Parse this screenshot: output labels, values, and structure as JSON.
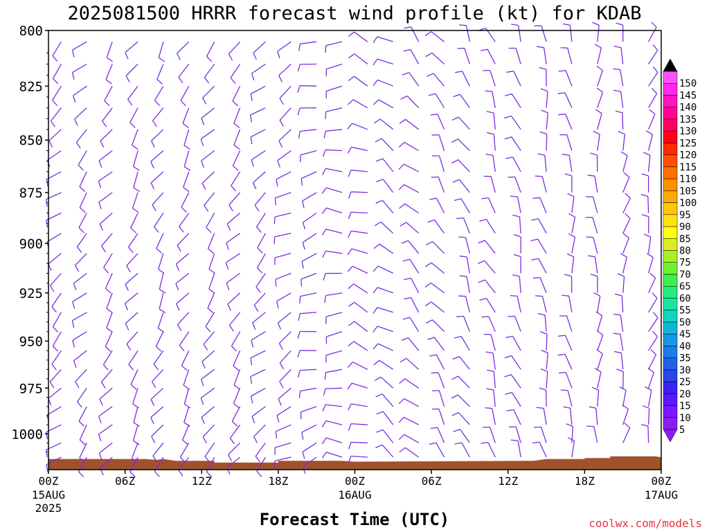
{
  "chart_data": {
    "type": "wind_profile",
    "title": "2025081500 HRRR forecast wind profile (kt) for KDAB",
    "xlabel": "Forecast Time (UTC)",
    "credit": "coolwx.com/models",
    "credit_color": "#e8323c",
    "y_axis": {
      "type": "log",
      "inverted": true,
      "range": [
        1020,
        800
      ],
      "ticks": [
        800,
        825,
        850,
        875,
        900,
        925,
        950,
        975,
        1000
      ]
    },
    "x_axis": {
      "range_hours": [
        0,
        48
      ],
      "ticks": [
        {
          "hour": 0,
          "label": "00Z",
          "date": "15AUG",
          "year": "2025"
        },
        {
          "hour": 6,
          "label": "06Z"
        },
        {
          "hour": 12,
          "label": "12Z"
        },
        {
          "hour": 18,
          "label": "18Z"
        },
        {
          "hour": 24,
          "label": "00Z",
          "date": "16AUG"
        },
        {
          "hour": 30,
          "label": "06Z"
        },
        {
          "hour": 36,
          "label": "12Z"
        },
        {
          "hour": 42,
          "label": "18Z"
        },
        {
          "hour": 48,
          "label": "00Z",
          "date": "17AUG"
        }
      ]
    },
    "barb_color": "#7b2be0",
    "surface_color": "#a0522d",
    "surface_pressure": [
      {
        "hour": 0,
        "p": 1014
      },
      {
        "hour": 7.5,
        "p": 1014
      },
      {
        "hour": 8.5,
        "p": 1014.5
      },
      {
        "hour": 9,
        "p": 1014
      },
      {
        "hour": 10,
        "p": 1015
      },
      {
        "hour": 13,
        "p": 1015
      },
      {
        "hour": 13,
        "p": 1016
      },
      {
        "hour": 18,
        "p": 1016
      },
      {
        "hour": 18,
        "p": 1015
      },
      {
        "hour": 23,
        "p": 1015
      },
      {
        "hour": 24,
        "p": 1015.5
      },
      {
        "hour": 38,
        "p": 1015
      },
      {
        "hour": 39,
        "p": 1014
      },
      {
        "hour": 42,
        "p": 1014
      },
      {
        "hour": 42,
        "p": 1013.5
      },
      {
        "hour": 44,
        "p": 1013.5
      },
      {
        "hour": 44,
        "p": 1012.5
      },
      {
        "hour": 47.5,
        "p": 1012.5
      },
      {
        "hour": 48,
        "p": 1013
      }
    ],
    "wind_pressure_levels": [
      805,
      815,
      825,
      835,
      845,
      855,
      865,
      875,
      885,
      895,
      905,
      915,
      925,
      935,
      945,
      955,
      965,
      975,
      985,
      995,
      1005,
      1013
    ],
    "wind_direction_keyframes": [
      {
        "hour": 0,
        "direction_deg": 230,
        "speed_kt": 10
      },
      {
        "hour": 8,
        "direction_deg": 210,
        "speed_kt": 10
      },
      {
        "hour": 16,
        "direction_deg": 220,
        "speed_kt": 10
      },
      {
        "hour": 22,
        "direction_deg": 260,
        "speed_kt": 10
      },
      {
        "hour": 26,
        "direction_deg": 300,
        "speed_kt": 10
      },
      {
        "hour": 32,
        "direction_deg": 330,
        "speed_kt": 10
      },
      {
        "hour": 40,
        "direction_deg": 350,
        "speed_kt": 10
      },
      {
        "hour": 48,
        "direction_deg": 20,
        "speed_kt": 10
      }
    ],
    "colorbar": {
      "units": "kt",
      "levels": [
        5,
        10,
        15,
        20,
        25,
        30,
        35,
        40,
        45,
        50,
        55,
        60,
        65,
        70,
        75,
        80,
        85,
        90,
        95,
        100,
        105,
        110,
        115,
        120,
        125,
        130,
        135,
        140,
        145,
        150
      ],
      "colors": [
        "#8c1cf0",
        "#7a18ff",
        "#5a18ff",
        "#3c22f0",
        "#2a45e8",
        "#1f62e6",
        "#1a7de8",
        "#129ae6",
        "#10b8d8",
        "#12d4c0",
        "#17e6a0",
        "#20ee78",
        "#3ef048",
        "#70f030",
        "#a8f028",
        "#d8f020",
        "#ffff14",
        "#ffe40c",
        "#ffc808",
        "#ffaa04",
        "#ff9000",
        "#ff7000",
        "#ff5000",
        "#ff2a00",
        "#ff0018",
        "#ff0060",
        "#ff0090",
        "#ff14c4",
        "#ff2ae8",
        "#ff50ff"
      ],
      "lower_arrow_color": "#8c1cf0",
      "upper_arrow_color": "#000000"
    }
  }
}
